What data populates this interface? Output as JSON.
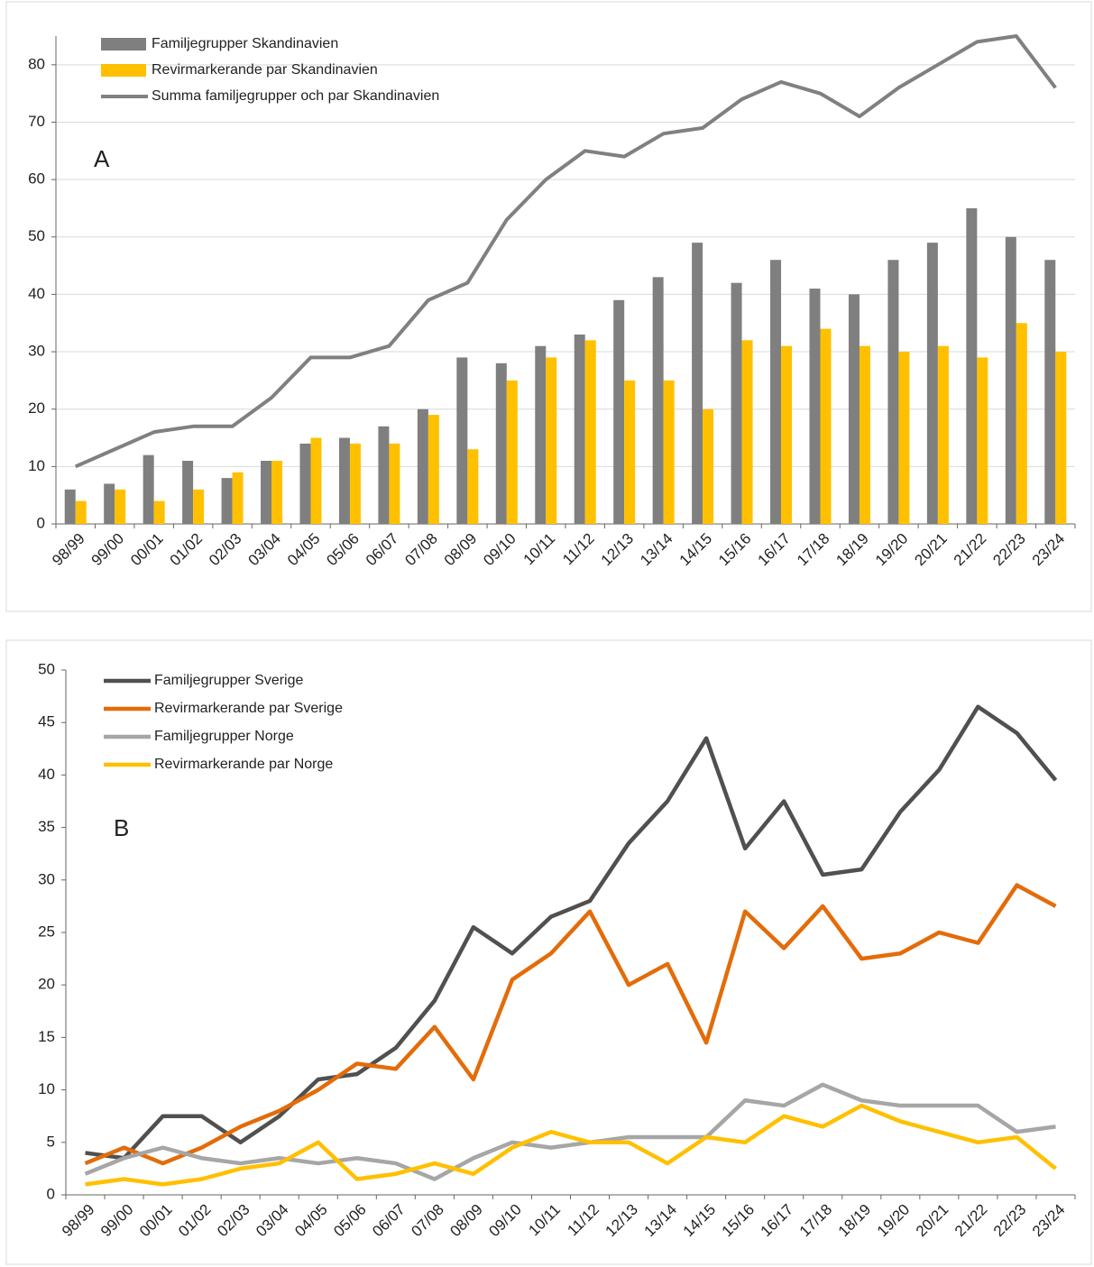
{
  "chart_data": [
    {
      "type": "bar",
      "annotation": "A",
      "categories": [
        "98/99",
        "99/00",
        "00/01",
        "01/02",
        "02/03",
        "03/04",
        "04/05",
        "05/06",
        "06/07",
        "07/08",
        "08/09",
        "09/10",
        "10/11",
        "11/12",
        "12/13",
        "13/14",
        "14/15",
        "15/16",
        "16/17",
        "17/18",
        "18/19",
        "19/20",
        "20/21",
        "21/22",
        "22/23",
        "23/24"
      ],
      "series": [
        {
          "name": "Familjegrupper Skandinavien",
          "type": "bar",
          "color": "#7f7f7f",
          "values": [
            6,
            7,
            12,
            11,
            8,
            11,
            14,
            15,
            17,
            20,
            29,
            28,
            31,
            33,
            39,
            43,
            49,
            42,
            46,
            41,
            40,
            46,
            49,
            55,
            50,
            46
          ]
        },
        {
          "name": "Revirmarkerande par Skandinavien",
          "type": "bar",
          "color": "#ffc000",
          "values": [
            4,
            6,
            4,
            6,
            9,
            11,
            15,
            14,
            14,
            19,
            13,
            25,
            29,
            32,
            25,
            25,
            20,
            32,
            31,
            34,
            31,
            30,
            31,
            29,
            35,
            30
          ]
        },
        {
          "name": "Summa familjegrupper och par Skandinavien",
          "type": "line",
          "color": "#808080",
          "values": [
            10,
            13,
            16,
            17,
            17,
            22,
            29,
            29,
            31,
            39,
            42,
            53,
            60,
            65,
            64,
            68,
            69,
            74,
            77,
            75,
            71,
            76,
            80,
            84,
            85,
            76
          ]
        }
      ],
      "ylim": [
        0,
        85
      ],
      "yticks": [
        0,
        10,
        20,
        30,
        40,
        50,
        60,
        70,
        80
      ],
      "grid": true,
      "legend": "top-left"
    },
    {
      "type": "line",
      "annotation": "B",
      "categories": [
        "98/99",
        "99/00",
        "00/01",
        "01/02",
        "02/03",
        "03/04",
        "04/05",
        "05/06",
        "06/07",
        "07/08",
        "08/09",
        "09/10",
        "10/11",
        "11/12",
        "12/13",
        "13/14",
        "14/15",
        "15/16",
        "16/17",
        "17/18",
        "18/19",
        "19/20",
        "20/21",
        "21/22",
        "22/23",
        "23/24"
      ],
      "series": [
        {
          "name": "Familjegrupper Sverige",
          "color": "#505050",
          "values": [
            4,
            3.5,
            7.5,
            7.5,
            5,
            7.5,
            11,
            11.5,
            14,
            18.5,
            25.5,
            23,
            26.5,
            28,
            33.5,
            37.5,
            43.5,
            33,
            37.5,
            30.5,
            31,
            36.5,
            40.5,
            46.5,
            44,
            39.5
          ]
        },
        {
          "name": "Revirmarkerande par Sverige",
          "color": "#e36c0a",
          "values": [
            3,
            4.5,
            3,
            4.5,
            6.5,
            8,
            10,
            12.5,
            12,
            16,
            11,
            20.5,
            23,
            27,
            20,
            22,
            14.5,
            27,
            23.5,
            27.5,
            22.5,
            23,
            25,
            24,
            29.5,
            27.5
          ]
        },
        {
          "name": "Familjegrupper Norge",
          "color": "#a6a6a6",
          "values": [
            2,
            3.5,
            4.5,
            3.5,
            3,
            3.5,
            3,
            3.5,
            3,
            1.5,
            3.5,
            5,
            4.5,
            5,
            5.5,
            5.5,
            5.5,
            9,
            8.5,
            10.5,
            9,
            8.5,
            8.5,
            8.5,
            6,
            6.5
          ]
        },
        {
          "name": "Revirmarkerande par Norge",
          "color": "#ffc000",
          "values": [
            1,
            1.5,
            1,
            1.5,
            2.5,
            3,
            5,
            1.5,
            2,
            3,
            2,
            4.5,
            6,
            5,
            5,
            3,
            5.5,
            5,
            7.5,
            6.5,
            8.5,
            7,
            6,
            5,
            5.5,
            2.5
          ]
        }
      ],
      "ylim": [
        0,
        50
      ],
      "yticks": [
        0,
        5,
        10,
        15,
        20,
        25,
        30,
        35,
        40,
        45,
        50
      ],
      "grid": false,
      "legend": "top-left"
    }
  ]
}
